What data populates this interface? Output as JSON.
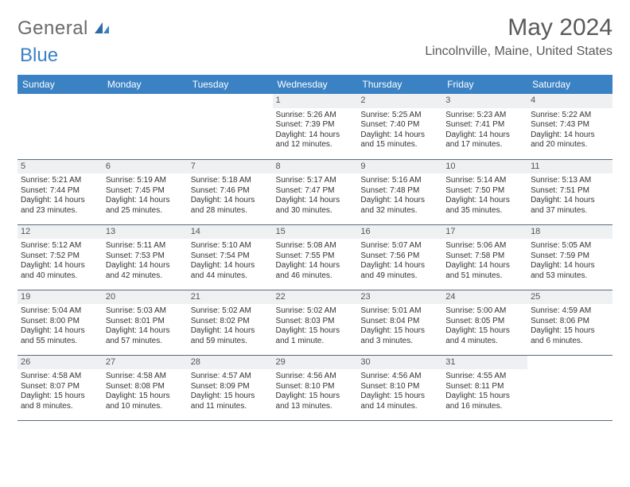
{
  "logo": {
    "word1": "General",
    "word2": "Blue"
  },
  "title": "May 2024",
  "location": "Lincolnville, Maine, United States",
  "colors": {
    "header_bg": "#3b82c4",
    "header_text": "#ffffff",
    "daynum_bg": "#eef0f2",
    "text": "#333333",
    "rule": "#5a6b7a",
    "logo_gray": "#6a6a6a",
    "logo_blue": "#3b82c4",
    "page_bg": "#ffffff"
  },
  "day_names": [
    "Sunday",
    "Monday",
    "Tuesday",
    "Wednesday",
    "Thursday",
    "Friday",
    "Saturday"
  ],
  "weeks": [
    [
      null,
      null,
      null,
      {
        "n": "1",
        "sr": "5:26 AM",
        "ss": "7:39 PM",
        "dl": "14 hours and 12 minutes."
      },
      {
        "n": "2",
        "sr": "5:25 AM",
        "ss": "7:40 PM",
        "dl": "14 hours and 15 minutes."
      },
      {
        "n": "3",
        "sr": "5:23 AM",
        "ss": "7:41 PM",
        "dl": "14 hours and 17 minutes."
      },
      {
        "n": "4",
        "sr": "5:22 AM",
        "ss": "7:43 PM",
        "dl": "14 hours and 20 minutes."
      }
    ],
    [
      {
        "n": "5",
        "sr": "5:21 AM",
        "ss": "7:44 PM",
        "dl": "14 hours and 23 minutes."
      },
      {
        "n": "6",
        "sr": "5:19 AM",
        "ss": "7:45 PM",
        "dl": "14 hours and 25 minutes."
      },
      {
        "n": "7",
        "sr": "5:18 AM",
        "ss": "7:46 PM",
        "dl": "14 hours and 28 minutes."
      },
      {
        "n": "8",
        "sr": "5:17 AM",
        "ss": "7:47 PM",
        "dl": "14 hours and 30 minutes."
      },
      {
        "n": "9",
        "sr": "5:16 AM",
        "ss": "7:48 PM",
        "dl": "14 hours and 32 minutes."
      },
      {
        "n": "10",
        "sr": "5:14 AM",
        "ss": "7:50 PM",
        "dl": "14 hours and 35 minutes."
      },
      {
        "n": "11",
        "sr": "5:13 AM",
        "ss": "7:51 PM",
        "dl": "14 hours and 37 minutes."
      }
    ],
    [
      {
        "n": "12",
        "sr": "5:12 AM",
        "ss": "7:52 PM",
        "dl": "14 hours and 40 minutes."
      },
      {
        "n": "13",
        "sr": "5:11 AM",
        "ss": "7:53 PM",
        "dl": "14 hours and 42 minutes."
      },
      {
        "n": "14",
        "sr": "5:10 AM",
        "ss": "7:54 PM",
        "dl": "14 hours and 44 minutes."
      },
      {
        "n": "15",
        "sr": "5:08 AM",
        "ss": "7:55 PM",
        "dl": "14 hours and 46 minutes."
      },
      {
        "n": "16",
        "sr": "5:07 AM",
        "ss": "7:56 PM",
        "dl": "14 hours and 49 minutes."
      },
      {
        "n": "17",
        "sr": "5:06 AM",
        "ss": "7:58 PM",
        "dl": "14 hours and 51 minutes."
      },
      {
        "n": "18",
        "sr": "5:05 AM",
        "ss": "7:59 PM",
        "dl": "14 hours and 53 minutes."
      }
    ],
    [
      {
        "n": "19",
        "sr": "5:04 AM",
        "ss": "8:00 PM",
        "dl": "14 hours and 55 minutes."
      },
      {
        "n": "20",
        "sr": "5:03 AM",
        "ss": "8:01 PM",
        "dl": "14 hours and 57 minutes."
      },
      {
        "n": "21",
        "sr": "5:02 AM",
        "ss": "8:02 PM",
        "dl": "14 hours and 59 minutes."
      },
      {
        "n": "22",
        "sr": "5:02 AM",
        "ss": "8:03 PM",
        "dl": "15 hours and 1 minute."
      },
      {
        "n": "23",
        "sr": "5:01 AM",
        "ss": "8:04 PM",
        "dl": "15 hours and 3 minutes."
      },
      {
        "n": "24",
        "sr": "5:00 AM",
        "ss": "8:05 PM",
        "dl": "15 hours and 4 minutes."
      },
      {
        "n": "25",
        "sr": "4:59 AM",
        "ss": "8:06 PM",
        "dl": "15 hours and 6 minutes."
      }
    ],
    [
      {
        "n": "26",
        "sr": "4:58 AM",
        "ss": "8:07 PM",
        "dl": "15 hours and 8 minutes."
      },
      {
        "n": "27",
        "sr": "4:58 AM",
        "ss": "8:08 PM",
        "dl": "15 hours and 10 minutes."
      },
      {
        "n": "28",
        "sr": "4:57 AM",
        "ss": "8:09 PM",
        "dl": "15 hours and 11 minutes."
      },
      {
        "n": "29",
        "sr": "4:56 AM",
        "ss": "8:10 PM",
        "dl": "15 hours and 13 minutes."
      },
      {
        "n": "30",
        "sr": "4:56 AM",
        "ss": "8:10 PM",
        "dl": "15 hours and 14 minutes."
      },
      {
        "n": "31",
        "sr": "4:55 AM",
        "ss": "8:11 PM",
        "dl": "15 hours and 16 minutes."
      },
      null
    ]
  ],
  "labels": {
    "sunrise": "Sunrise:",
    "sunset": "Sunset:",
    "daylight": "Daylight:"
  }
}
